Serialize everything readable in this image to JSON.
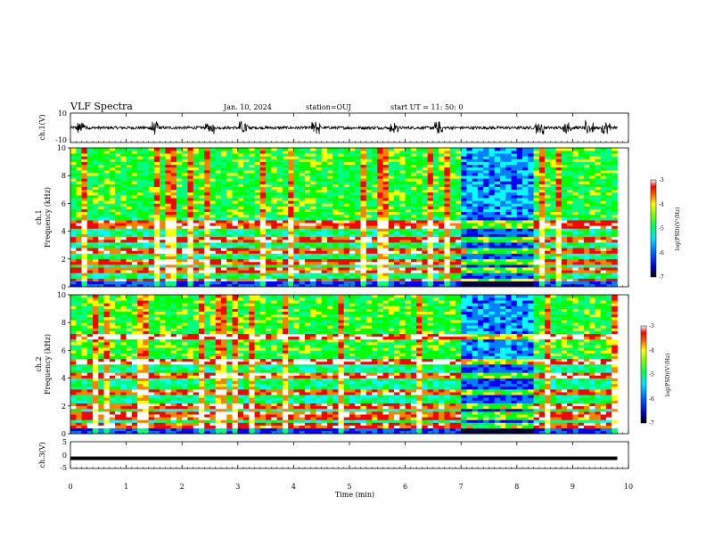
{
  "header": {
    "title": "VLF Spectra",
    "date": "Jan. 10, 2024",
    "station": "station=OUJ",
    "start": "start  UT  =  11: 50: 0"
  },
  "colors": {
    "spectrogram_scale": [
      "#000040",
      "#0000ff",
      "#0080ff",
      "#00ffff",
      "#00ff80",
      "#00ff00",
      "#ffff00",
      "#ff8000",
      "#ff0000",
      "#ffffff"
    ]
  },
  "chart_data": [
    {
      "type": "line",
      "panel": "waveform_ch1",
      "ylabel": "ch.1(V)",
      "ylim": [
        -10,
        10
      ],
      "yticks": [
        "10",
        "-10"
      ],
      "xlim": [
        0,
        10
      ],
      "description_values": {
        "baseline": 0,
        "typical_amplitude": 1,
        "burst_amplitude": 5
      },
      "bursts_min": [
        0.2,
        1.5,
        2.5,
        3.1,
        4.4,
        5.8,
        6.6,
        8.4,
        8.9,
        9.3,
        9.6
      ]
    },
    {
      "type": "heatmap",
      "panel": "spectrogram_ch1",
      "ylabel_top": "ch.1",
      "ylabel": "Frequency  (kHz)",
      "ylim": [
        0,
        10
      ],
      "yticks": [
        "0",
        "2",
        "4",
        "6",
        "8",
        "10"
      ],
      "xlim": [
        0,
        9.8
      ],
      "colorbar": {
        "label": "log(PSD)(V²/Hz)",
        "range": [
          -7,
          -3
        ],
        "ticks": [
          "-3",
          "-4",
          "-5",
          "-6",
          "-7"
        ]
      },
      "quiet_interval_min": [
        7.0,
        8.3
      ],
      "strong_bands_khz": [
        0.4,
        1.2,
        1.8,
        2.6,
        3.4,
        4.5
      ]
    },
    {
      "type": "heatmap",
      "panel": "spectrogram_ch2",
      "ylabel_top": "ch.2",
      "ylabel": "Frequency  (kHz)",
      "ylim": [
        0,
        10
      ],
      "yticks": [
        "0",
        "2",
        "4",
        "6",
        "8",
        "10"
      ],
      "xlim": [
        0,
        9.8
      ],
      "colorbar": {
        "label": "log(PSD)(V²/Hz)",
        "range": [
          -7,
          -3
        ],
        "ticks": [
          "-3",
          "-4",
          "-5",
          "-6",
          "-7"
        ]
      },
      "quiet_interval_min": [
        7.0,
        8.3
      ],
      "strong_bands_khz": [
        0.5,
        1.3,
        2.0,
        3.0,
        4.2,
        5.2,
        7.0
      ]
    },
    {
      "type": "line",
      "panel": "waveform_ch3",
      "ylabel": "ch.3(V)",
      "ylim": [
        -5,
        5
      ],
      "yticks": [
        "5",
        "0",
        "-5"
      ],
      "xlim": [
        0,
        10
      ],
      "constant_value": -1.2
    }
  ],
  "xaxis": {
    "label": "Time  (min)",
    "ticks": [
      "0",
      "1",
      "2",
      "3",
      "4",
      "5",
      "6",
      "7",
      "8",
      "9",
      "10"
    ],
    "range": [
      0,
      10
    ]
  }
}
